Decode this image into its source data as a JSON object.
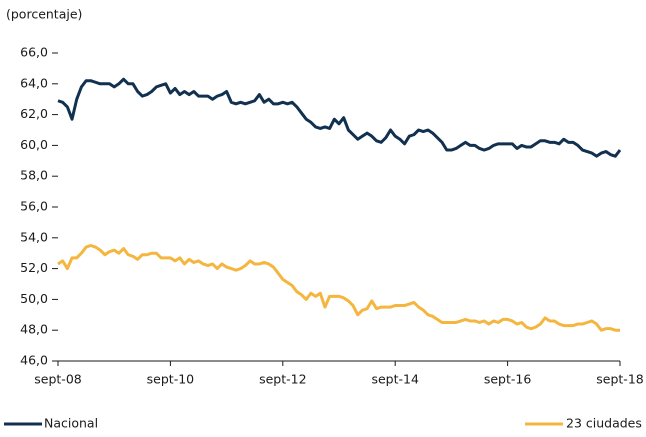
{
  "chart_data": {
    "type": "line",
    "subtitle": "(porcentaje)",
    "categories": [
      "sept-08",
      null,
      null,
      null,
      null,
      null,
      null,
      null,
      null,
      null,
      null,
      null,
      null,
      null,
      null,
      null,
      null,
      null,
      null,
      null,
      null,
      null,
      null,
      null,
      "sept-10",
      null,
      null,
      null,
      null,
      null,
      null,
      null,
      null,
      null,
      null,
      null,
      null,
      null,
      null,
      null,
      null,
      null,
      null,
      null,
      null,
      null,
      null,
      null,
      "sept-12",
      null,
      null,
      null,
      null,
      null,
      null,
      null,
      null,
      null,
      null,
      null,
      null,
      null,
      null,
      null,
      null,
      null,
      null,
      null,
      null,
      null,
      null,
      null,
      "sept-14",
      null,
      null,
      null,
      null,
      null,
      null,
      null,
      null,
      null,
      null,
      null,
      null,
      null,
      null,
      null,
      null,
      null,
      null,
      null,
      null,
      null,
      null,
      null,
      "sept-16",
      null,
      null,
      null,
      null,
      null,
      null,
      null,
      null,
      null,
      null,
      null,
      null,
      null,
      null,
      null,
      null,
      null,
      null,
      null,
      null,
      null,
      null,
      null,
      "sept-18"
    ],
    "series": [
      {
        "name": "Nacional",
        "color": "#12304f",
        "values": [
          62.9,
          62.8,
          62.5,
          61.7,
          63.0,
          63.8,
          64.2,
          64.2,
          64.1,
          64.0,
          64.0,
          64.0,
          63.8,
          64.0,
          64.3,
          64.0,
          64.0,
          63.5,
          63.2,
          63.3,
          63.5,
          63.8,
          63.9,
          64.0,
          63.4,
          63.7,
          63.3,
          63.5,
          63.3,
          63.5,
          63.2,
          63.2,
          63.2,
          63.0,
          63.2,
          63.3,
          63.5,
          62.8,
          62.7,
          62.8,
          62.7,
          62.8,
          62.9,
          63.3,
          62.8,
          63.0,
          62.7,
          62.7,
          62.8,
          62.7,
          62.8,
          62.5,
          62.1,
          61.7,
          61.5,
          61.2,
          61.1,
          61.2,
          61.1,
          61.7,
          61.4,
          61.8,
          61.0,
          60.7,
          60.4,
          60.6,
          60.8,
          60.6,
          60.3,
          60.2,
          60.5,
          61.0,
          60.6,
          60.4,
          60.1,
          60.6,
          60.7,
          61.0,
          60.9,
          61.0,
          60.8,
          60.5,
          60.2,
          59.7,
          59.7,
          59.8,
          60.0,
          60.2,
          60.0,
          60.0,
          59.8,
          59.7,
          59.8,
          60.0,
          60.1,
          60.1,
          60.1,
          60.1,
          59.8,
          60.0,
          59.9,
          59.9,
          60.1,
          60.3,
          60.3,
          60.2,
          60.2,
          60.1,
          60.4,
          60.2,
          60.2,
          60.0,
          59.7,
          59.6,
          59.5,
          59.3,
          59.5,
          59.6,
          59.4,
          59.3,
          59.7
        ]
      },
      {
        "name": "23 ciudades",
        "color": "#f4b63f",
        "values": [
          52.3,
          52.5,
          52.0,
          52.7,
          52.7,
          53.0,
          53.4,
          53.5,
          53.4,
          53.2,
          52.9,
          53.1,
          53.2,
          53.0,
          53.3,
          52.9,
          52.8,
          52.6,
          52.9,
          52.9,
          53.0,
          53.0,
          52.7,
          52.7,
          52.7,
          52.5,
          52.7,
          52.3,
          52.6,
          52.4,
          52.5,
          52.3,
          52.2,
          52.3,
          52.0,
          52.3,
          52.1,
          52.0,
          51.9,
          52.0,
          52.2,
          52.5,
          52.3,
          52.3,
          52.4,
          52.3,
          52.1,
          51.7,
          51.3,
          51.1,
          50.9,
          50.5,
          50.3,
          50.0,
          50.4,
          50.2,
          50.4,
          49.5,
          50.2,
          50.2,
          50.2,
          50.1,
          49.9,
          49.6,
          49.0,
          49.3,
          49.4,
          49.9,
          49.4,
          49.5,
          49.5,
          49.5,
          49.6,
          49.6,
          49.6,
          49.7,
          49.8,
          49.5,
          49.3,
          49.0,
          48.9,
          48.7,
          48.5,
          48.5,
          48.5,
          48.5,
          48.6,
          48.7,
          48.6,
          48.6,
          48.5,
          48.6,
          48.4,
          48.6,
          48.5,
          48.7,
          48.7,
          48.6,
          48.4,
          48.5,
          48.2,
          48.1,
          48.2,
          48.4,
          48.8,
          48.6,
          48.6,
          48.4,
          48.3,
          48.3,
          48.3,
          48.4,
          48.4,
          48.5,
          48.6,
          48.4,
          48.0,
          48.1,
          48.1,
          48.0,
          48.0
        ]
      }
    ],
    "ylim": [
      46,
      66
    ],
    "yticks": [
      {
        "value": 46,
        "label": "46,0"
      },
      {
        "value": 48,
        "label": "48,0"
      },
      {
        "value": 50,
        "label": "50,0"
      },
      {
        "value": 52,
        "label": "52,0"
      },
      {
        "value": 54,
        "label": "54,0"
      },
      {
        "value": 56,
        "label": "56,0"
      },
      {
        "value": 58,
        "label": "58,0"
      },
      {
        "value": 60,
        "label": "60,0"
      },
      {
        "value": 62,
        "label": "62,0"
      },
      {
        "value": 64,
        "label": "64,0"
      },
      {
        "value": 66,
        "label": "66,0"
      }
    ],
    "grid": false,
    "legend": "bottom"
  }
}
